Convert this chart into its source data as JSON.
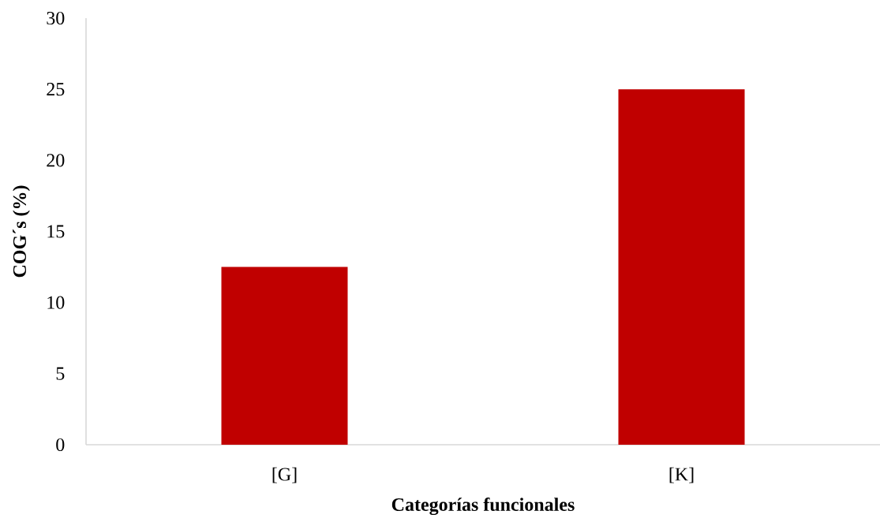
{
  "chart_data": {
    "type": "bar",
    "xlabel": "Categorías funcionales",
    "ylabel": "COG´s (%)",
    "categories": [
      "[G]",
      "[K]"
    ],
    "values": [
      12.5,
      25
    ],
    "color": "#c00000",
    "ylim": [
      0,
      30
    ],
    "yticks": [
      0,
      5,
      10,
      15,
      20,
      25,
      30
    ]
  }
}
